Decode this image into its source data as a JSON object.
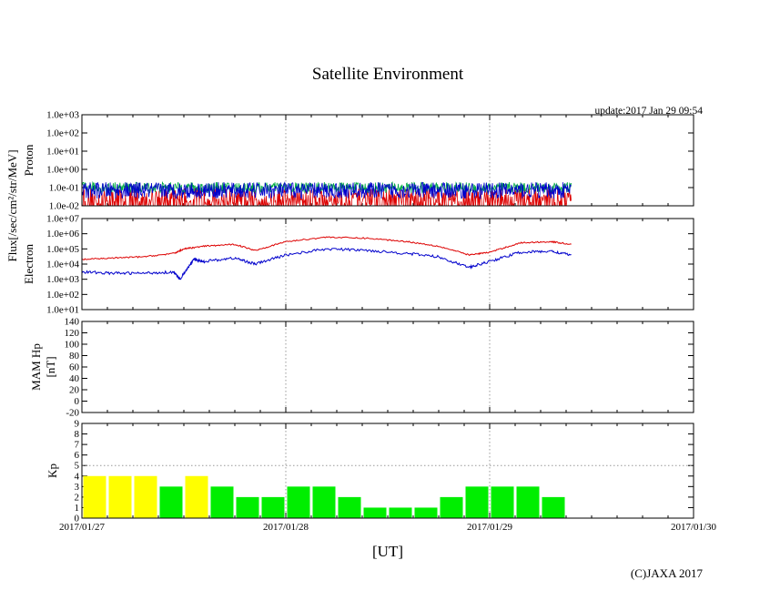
{
  "title": "Satellite Environment",
  "update": "update:2017 Jan 29 09:54",
  "copyright": "(C)JAXA 2017",
  "xlabel": "[UT]",
  "x_ticks": [
    "2017/01/27",
    "2017/01/28",
    "2017/01/29",
    "2017/01/30"
  ],
  "flux_label": "Flux[/sec/cm²/str/MeV]",
  "colors": {
    "red": "#dd0000",
    "blue": "#0000cc",
    "green": "#00aa44",
    "kp_yellow": "#ffff00",
    "kp_green": "#00ee00",
    "grid": "#999999"
  },
  "chart_data": [
    {
      "type": "line",
      "panel": "proton",
      "ylabel": "Proton",
      "yscale": "log",
      "ylim": [
        0.01,
        1000
      ],
      "yticks": [
        "1.0e+03",
        "1.0e+02",
        "1.0e+01",
        "1.0e+00",
        "1.0e-01",
        "1.0e-02"
      ],
      "xlim": [
        0,
        3
      ],
      "data_end": 2.4,
      "series": [
        {
          "color": "red",
          "base": 0.03,
          "noise_decades": 0.5
        },
        {
          "color": "green",
          "base": 0.1,
          "noise_decades": 0.3
        },
        {
          "color": "blue",
          "base": 0.07,
          "noise_decades": 0.45
        }
      ]
    },
    {
      "type": "line",
      "panel": "electron",
      "ylabel": "Electron",
      "yscale": "log",
      "ylim": [
        10,
        10000000
      ],
      "yticks": [
        "1.0e+07",
        "1.0e+06",
        "1.0e+05",
        "1.0e+04",
        "1.0e+03",
        "1.0e+02",
        "1.0e+01"
      ],
      "xlim": [
        0,
        3
      ],
      "series": [
        {
          "color": "red",
          "x": [
            0,
            0.15,
            0.3,
            0.45,
            0.5,
            0.6,
            0.75,
            0.85,
            1.0,
            1.2,
            1.4,
            1.6,
            1.75,
            1.9,
            2.0,
            2.15,
            2.3,
            2.4
          ],
          "y": [
            20000,
            25000,
            30000,
            50000,
            100000,
            150000,
            200000,
            80000,
            300000,
            600000,
            500000,
            300000,
            150000,
            40000,
            60000,
            250000,
            300000,
            200000
          ]
        },
        {
          "color": "blue",
          "x": [
            0,
            0.15,
            0.3,
            0.45,
            0.48,
            0.55,
            0.6,
            0.75,
            0.85,
            1.0,
            1.2,
            1.4,
            1.6,
            1.75,
            1.9,
            2.0,
            2.15,
            2.3,
            2.4
          ],
          "y": [
            3000,
            2500,
            2500,
            3000,
            1000,
            20000,
            15000,
            25000,
            10000,
            40000,
            100000,
            80000,
            50000,
            30000,
            6000,
            15000,
            60000,
            70000,
            40000
          ]
        }
      ]
    },
    {
      "type": "line",
      "panel": "mam",
      "ylabel": "MAM Hp",
      "yunit": "[nT]",
      "ylim": [
        -20,
        140
      ],
      "yticks": [
        "140",
        "120",
        "100",
        "80",
        "60",
        "40",
        "20",
        "0",
        "-20"
      ],
      "xlim": [
        0,
        3
      ],
      "series": []
    },
    {
      "type": "bar",
      "panel": "kp",
      "ylabel": "Kp",
      "ylim": [
        0,
        9
      ],
      "yticks": [
        "9",
        "8",
        "7",
        "6",
        "5",
        "4",
        "3",
        "2",
        "1",
        "0"
      ],
      "xlim": [
        0,
        3
      ],
      "bar_width_days": 0.125,
      "values": [
        4,
        4,
        4,
        3,
        4,
        3,
        2,
        2,
        3,
        3,
        2,
        1,
        1,
        1,
        2,
        3,
        3,
        3,
        2
      ],
      "bar_colors": [
        "kp_yellow",
        "kp_yellow",
        "kp_yellow",
        "kp_green",
        "kp_yellow",
        "kp_green",
        "kp_green",
        "kp_green",
        "kp_green",
        "kp_green",
        "kp_green",
        "kp_green",
        "kp_green",
        "kp_green",
        "kp_green",
        "kp_green",
        "kp_green",
        "kp_green",
        "kp_green"
      ]
    }
  ]
}
